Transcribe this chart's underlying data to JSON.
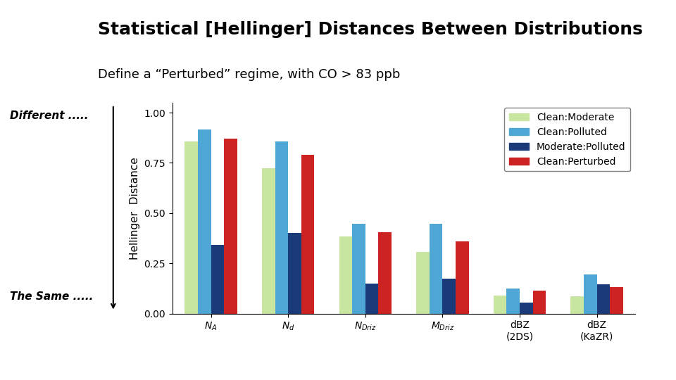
{
  "title": "Statistical [Hellinger] Distances Between Distributions",
  "subtitle": "Define a “Perturbed” regime, with CO > 83 ppb",
  "ylabel": "Hellinger  Distance",
  "left_label_top": "Different .....",
  "left_label_bottom": "The Same .....",
  "series_labels": [
    "Clean:Moderate",
    "Clean:Polluted",
    "Moderate:Polluted",
    "Clean:Perturbed"
  ],
  "colors": [
    "#c8e6a0",
    "#4da6d4",
    "#1a3a7a",
    "#cc2222"
  ],
  "ylim": [
    0.0,
    1.05
  ],
  "yticks": [
    0.0,
    0.25,
    0.5,
    0.75,
    1.0
  ],
  "data": {
    "Clean:Moderate": [
      0.855,
      0.725,
      0.385,
      0.305,
      0.09,
      0.085
    ],
    "Clean:Polluted": [
      0.915,
      0.855,
      0.445,
      0.445,
      0.125,
      0.195
    ],
    "Moderate:Polluted": [
      0.34,
      0.4,
      0.15,
      0.175,
      0.055,
      0.145
    ],
    "Clean:Perturbed": [
      0.87,
      0.79,
      0.405,
      0.36,
      0.115,
      0.13
    ]
  },
  "background_color": "#ffffff",
  "title_fontsize": 18,
  "subtitle_fontsize": 13,
  "tick_fontsize": 10,
  "ylabel_fontsize": 11,
  "legend_fontsize": 10
}
